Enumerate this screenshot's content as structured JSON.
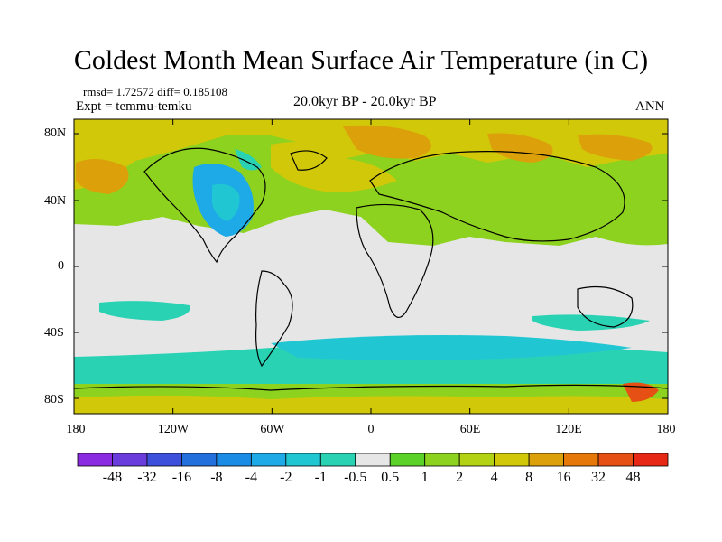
{
  "title": "Coldest Month Mean Surface Air Temperature (in C)",
  "stats": "rmsd= 1.72572 diff= 0.185108",
  "expt": "Expt = temmu-temku",
  "period": "20.0kyr BP - 20.0kyr BP",
  "season": "ANN",
  "lat_labels": [
    "80N",
    "40N",
    "0",
    "40S",
    "80S"
  ],
  "lon_labels": [
    "180",
    "120W",
    "60W",
    "0",
    "60E",
    "120E",
    "180"
  ],
  "colorbar": {
    "labels": [
      "-48",
      "-32",
      "-16",
      "-8",
      "-4",
      "-2",
      "-1",
      "-0.5",
      "0.5",
      "1",
      "2",
      "4",
      "8",
      "16",
      "32",
      "48"
    ],
    "colors": [
      "#8a2be2",
      "#6a3cdc",
      "#3c50dc",
      "#2370dc",
      "#1a8ce6",
      "#1eaae6",
      "#20c6d2",
      "#2ad2b4",
      "#e6e6e6",
      "#5ad228",
      "#8cd21e",
      "#b4d214",
      "#d2c80a",
      "#dca00a",
      "#e6780a",
      "#e65014",
      "#e62814"
    ]
  }
}
